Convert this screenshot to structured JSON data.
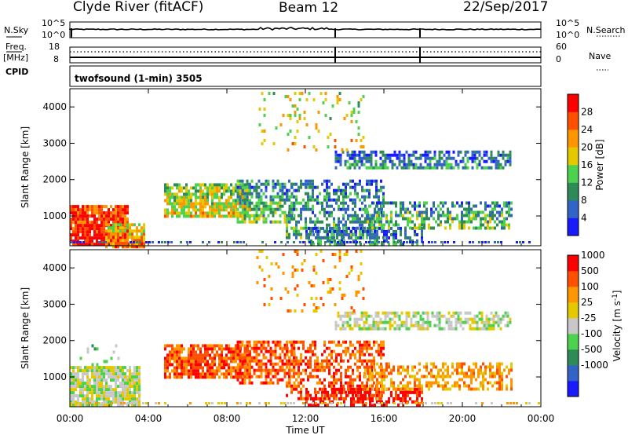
{
  "header": {
    "station": "Clyde River (fitACF)",
    "beam": "Beam 12",
    "date": "22/Sep/2017"
  },
  "noise_panel": {
    "left_label": "N.Sky",
    "right_label": "N.Search",
    "left_ticks": [
      "10^5",
      "10^0"
    ],
    "right_ticks": [
      "10^5",
      "10^0"
    ]
  },
  "freq_panel": {
    "left_label_1": "Freq.",
    "left_label_2": "[MHz]",
    "right_label": "Nave",
    "left_ticks": [
      "18",
      "8"
    ],
    "right_ticks": [
      "60",
      "0"
    ]
  },
  "cpid": {
    "label": "CPID",
    "program": "twofsound (1-min) 3505"
  },
  "chart_data": [
    {
      "type": "heatmap",
      "title": "",
      "xlabel": "Time UT",
      "ylabel": "Slant Range [km]",
      "x_ticks": [
        "00:00",
        "04:00",
        "08:00",
        "12:00",
        "16:00",
        "20:00",
        "00:00"
      ],
      "y_ticks": [
        1000,
        2000,
        3000,
        4000
      ],
      "xlim": [
        0,
        24
      ],
      "ylim": [
        180,
        4500
      ],
      "colorbar_label": "Power [dB]",
      "colorbar_ticks": [
        4,
        8,
        12,
        16,
        20,
        24,
        28
      ],
      "colorbar_range": [
        0,
        32
      ],
      "colors": [
        "#1a1aff",
        "#3264c8",
        "#2e8b57",
        "#4dd24d",
        "#e6c800",
        "#ff9600",
        "#ff5000",
        "#ff0000"
      ],
      "regions": [
        {
          "t": [
            0.0,
            3.0
          ],
          "r": [
            180,
            1300
          ],
          "v": 26,
          "d": 0.9
        },
        {
          "t": [
            1.8,
            3.8
          ],
          "r": [
            180,
            800
          ],
          "v": 18,
          "d": 0.8
        },
        {
          "t": [
            4.8,
            9.2
          ],
          "r": [
            1000,
            1900
          ],
          "v": 14,
          "d": 0.8
        },
        {
          "t": [
            8.5,
            11.5
          ],
          "r": [
            800,
            2000
          ],
          "v": 8,
          "d": 0.6
        },
        {
          "t": [
            11.0,
            16.0
          ],
          "r": [
            400,
            2000
          ],
          "v": 6,
          "d": 0.5
        },
        {
          "t": [
            12.0,
            18.0
          ],
          "r": [
            200,
            700
          ],
          "v": 5,
          "d": 0.55
        },
        {
          "t": [
            13.5,
            22.5
          ],
          "r": [
            2300,
            2800
          ],
          "v": 5,
          "d": 0.6
        },
        {
          "t": [
            15.0,
            22.5
          ],
          "r": [
            700,
            1400
          ],
          "v": 8,
          "d": 0.5
        },
        {
          "t": [
            9.5,
            15.0
          ],
          "r": [
            2800,
            4500
          ],
          "v": 15,
          "d": 0.1
        }
      ]
    },
    {
      "type": "heatmap",
      "title": "",
      "xlabel": "Time UT",
      "ylabel": "Slant Range [km]",
      "x_ticks": [
        "00:00",
        "04:00",
        "08:00",
        "12:00",
        "16:00",
        "20:00",
        "00:00"
      ],
      "y_ticks": [
        1000,
        2000,
        3000,
        4000
      ],
      "xlim": [
        0,
        24
      ],
      "ylim": [
        180,
        4500
      ],
      "colorbar_label": "Velocity [m s^-1]",
      "colorbar_ticks": [
        "1000",
        "500",
        "100",
        "25",
        "-25",
        "-100",
        "-500",
        "-1000"
      ],
      "colors": [
        "#1a1aff",
        "#3264c8",
        "#2e8b57",
        "#4dd24d",
        "#c8c8c8",
        "#e6c800",
        "#ff9600",
        "#ff5000",
        "#ff0000"
      ],
      "regions": [
        {
          "t": [
            0.0,
            3.5
          ],
          "r": [
            180,
            1300
          ],
          "v": 4,
          "d": 0.85
        },
        {
          "t": [
            0.5,
            2.5
          ],
          "r": [
            1300,
            1900
          ],
          "v": 3,
          "d": 0.2
        },
        {
          "t": [
            4.8,
            9.2
          ],
          "r": [
            1000,
            1900
          ],
          "v": 7,
          "d": 0.8
        },
        {
          "t": [
            8.5,
            11.5
          ],
          "r": [
            800,
            2000
          ],
          "v": 7,
          "d": 0.6
        },
        {
          "t": [
            11.0,
            16.0
          ],
          "r": [
            400,
            2000
          ],
          "v": 7,
          "d": 0.5
        },
        {
          "t": [
            12.0,
            18.0
          ],
          "r": [
            200,
            700
          ],
          "v": 8,
          "d": 0.55
        },
        {
          "t": [
            13.5,
            22.5
          ],
          "r": [
            2300,
            2800
          ],
          "v": 4,
          "d": 0.6
        },
        {
          "t": [
            15.0,
            22.5
          ],
          "r": [
            700,
            1400
          ],
          "v": 6,
          "d": 0.5
        },
        {
          "t": [
            9.5,
            15.0
          ],
          "r": [
            2800,
            4500
          ],
          "v": 6,
          "d": 0.1
        }
      ]
    }
  ]
}
